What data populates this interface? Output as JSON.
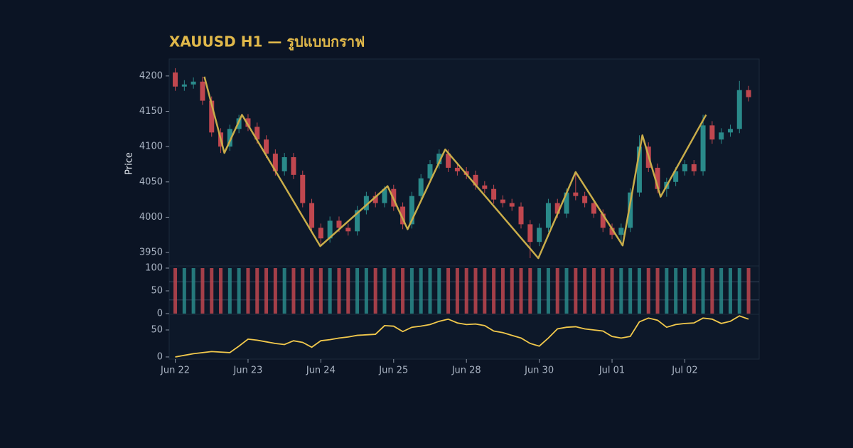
{
  "chart_data": [
    {
      "type": "candlestick",
      "title": "XAUUSD H1 — รูปแบบกราฟ",
      "ylabel": "Price",
      "x": [
        0,
        3,
        6,
        9,
        12,
        15,
        18,
        21,
        24,
        27,
        30,
        33,
        36,
        39,
        42,
        45,
        48,
        51,
        54,
        57,
        60,
        63,
        66,
        69,
        72,
        75,
        78,
        81,
        84,
        87,
        90,
        93,
        96,
        99,
        102,
        105,
        108,
        111,
        114,
        117,
        120,
        123,
        126,
        129,
        132,
        135,
        138,
        141,
        144,
        147,
        150,
        153,
        156,
        159,
        162,
        165,
        168,
        171,
        174,
        177,
        180,
        183,
        186,
        189
      ],
      "open": [
        4205,
        4185,
        4188,
        4192,
        4165,
        4120,
        4100,
        4125,
        4140,
        4128,
        4110,
        4090,
        4065,
        4085,
        4060,
        4020,
        3985,
        3970,
        3995,
        3985,
        3980,
        4010,
        4030,
        4020,
        4040,
        4015,
        3990,
        4030,
        4055,
        4075,
        4090,
        4070,
        4065,
        4060,
        4045,
        4040,
        4025,
        4020,
        4015,
        3990,
        3965,
        3985,
        4020,
        4005,
        4035,
        4030,
        4020,
        4005,
        3985,
        3975,
        3985,
        4035,
        4100,
        4070,
        4040,
        4050,
        4065,
        4075,
        4065,
        4130,
        4110,
        4120,
        4125,
        4180
      ],
      "high": [
        4211,
        4194,
        4198,
        4199,
        4171,
        4126,
        4131,
        4145,
        4146,
        4134,
        4116,
        4096,
        4091,
        4091,
        4066,
        4026,
        3991,
        4001,
        4001,
        3991,
        4016,
        4036,
        4036,
        4044,
        4046,
        4021,
        4036,
        4061,
        4081,
        4096,
        4096,
        4076,
        4071,
        4066,
        4051,
        4046,
        4031,
        4026,
        4021,
        3996,
        3991,
        4026,
        4026,
        4041,
        4064,
        4036,
        4026,
        4011,
        3991,
        3991,
        4041,
        4116,
        4106,
        4076,
        4056,
        4071,
        4081,
        4081,
        4145,
        4136,
        4126,
        4131,
        4193,
        4186
      ],
      "low": [
        4179,
        4179,
        4182,
        4159,
        4114,
        4091,
        4094,
        4119,
        4122,
        4104,
        4084,
        4059,
        4059,
        4054,
        4014,
        3979,
        3959,
        3964,
        3979,
        3974,
        3974,
        4004,
        4014,
        4014,
        4009,
        3983,
        3984,
        4024,
        4049,
        4069,
        4064,
        4059,
        4054,
        4039,
        4034,
        4019,
        4014,
        4009,
        3984,
        3942,
        3959,
        3979,
        3999,
        3999,
        4024,
        4014,
        3999,
        3979,
        3969,
        3960,
        3979,
        4029,
        4064,
        4034,
        4029,
        4044,
        4059,
        4059,
        4059,
        4104,
        4104,
        4114,
        4119,
        4164
      ],
      "close": [
        4185,
        4188,
        4192,
        4165,
        4120,
        4100,
        4125,
        4140,
        4128,
        4110,
        4090,
        4065,
        4085,
        4060,
        4020,
        3985,
        3970,
        3995,
        3985,
        3980,
        4010,
        4030,
        4020,
        4040,
        4015,
        3990,
        4030,
        4055,
        4075,
        4090,
        4070,
        4065,
        4060,
        4045,
        4040,
        4025,
        4020,
        4015,
        3990,
        3965,
        3985,
        4020,
        4005,
        4035,
        4030,
        4020,
        4005,
        3985,
        3975,
        3985,
        4035,
        4100,
        4070,
        4040,
        4050,
        4065,
        4075,
        4065,
        4130,
        4110,
        4120,
        4125,
        4180,
        4170
      ],
      "up_color": "#2a8a8a",
      "down_color": "#c0474f",
      "ylim": [
        3935,
        4224
      ],
      "yticks": [
        3950,
        4000,
        4050,
        4100,
        4150,
        4200
      ],
      "xlim": [
        -2,
        192.5
      ],
      "xticks": [
        {
          "value": 0,
          "label": "Jun 22"
        },
        {
          "value": 24,
          "label": "Jun 23"
        },
        {
          "value": 48,
          "label": "Jun 24"
        },
        {
          "value": 72,
          "label": "Jun 25"
        },
        {
          "value": 96,
          "label": "Jun 28"
        },
        {
          "value": 120,
          "label": "Jun 30"
        },
        {
          "value": 144,
          "label": "Jul 01"
        },
        {
          "value": 168,
          "label": "Jul 02"
        }
      ],
      "overlay": {
        "color": "#c9ad4a",
        "x": [
          9.6,
          16.2,
          22,
          47.8,
          70,
          76.6,
          89,
          119.7,
          132,
          147.5,
          154,
          160,
          175
        ],
        "y": [
          4199,
          4091,
          4145,
          3959,
          4044,
          3983,
          4096,
          3942,
          4064,
          3960,
          4116,
          4029,
          4145
        ]
      }
    },
    {
      "type": "bar",
      "values": [
        100,
        100,
        100,
        100,
        100,
        100,
        100,
        100,
        100,
        100,
        100,
        100,
        100,
        100,
        100,
        100,
        100,
        100,
        100,
        100,
        100,
        100,
        100,
        100,
        100,
        100,
        100,
        100,
        100,
        100,
        100,
        100,
        100,
        100,
        100,
        100,
        100,
        100,
        100,
        100,
        100,
        100,
        100,
        100,
        100,
        100,
        100,
        100,
        100,
        100,
        100,
        100,
        100,
        100,
        100,
        100,
        100,
        100,
        100,
        100,
        100,
        100,
        100,
        100
      ],
      "ylim": [
        0,
        100
      ],
      "yticks": [
        0,
        50,
        100
      ],
      "levels": [
        30,
        70
      ]
    },
    {
      "type": "line",
      "color": "#f2c94c",
      "values": [
        0,
        3,
        6,
        8,
        10,
        9,
        8,
        20,
        33,
        31,
        28,
        25,
        23,
        30,
        27,
        18,
        30,
        32,
        35,
        37,
        40,
        41,
        42,
        58,
        57,
        47,
        55,
        57,
        60,
        66,
        70,
        63,
        60,
        61,
        58,
        48,
        45,
        40,
        35,
        25,
        20,
        35,
        52,
        55,
        56,
        52,
        50,
        48,
        38,
        35,
        38,
        65,
        72,
        68,
        55,
        60,
        62,
        63,
        72,
        70,
        62,
        66,
        76,
        70
      ],
      "ylim": [
        -4,
        75
      ],
      "yticks": [
        0,
        50
      ]
    }
  ]
}
